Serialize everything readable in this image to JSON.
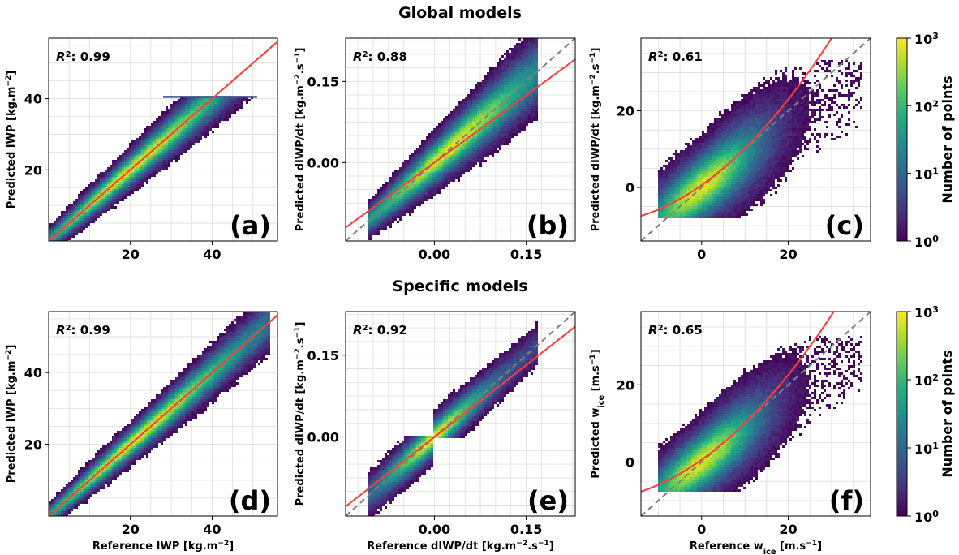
{
  "titles": {
    "global": "Global models",
    "specific": "Specific models"
  },
  "colorbar": {
    "label": "Number of points",
    "ticks": [
      {
        "base": "10",
        "exp": "0"
      },
      {
        "base": "10",
        "exp": "1"
      },
      {
        "base": "10",
        "exp": "2"
      },
      {
        "base": "10",
        "exp": "3"
      }
    ],
    "colors": [
      "#440154",
      "#472d7b",
      "#3b528b",
      "#2c728e",
      "#21918c",
      "#28ae80",
      "#5ec962",
      "#addc30",
      "#fde725"
    ]
  },
  "colors": {
    "fit_line": "#ff3b3b",
    "identity_line": "#7f7f7f",
    "center_line": "#1a1a1a",
    "grid": "#dddddd"
  },
  "chart_data": [
    {
      "type": "heatmap",
      "panel_label": "(a)",
      "r2_label": "R",
      "r2_value": ": 0.99",
      "xlabel": "",
      "ylabel_parts": [
        "Predicted IWP [kg.m",
        "−2",
        "]"
      ],
      "xlim": [
        0,
        56
      ],
      "ylim": [
        0,
        57
      ],
      "xticks": [
        20,
        40
      ],
      "xtick_labels": [
        "20",
        "40"
      ],
      "yticks": [
        20,
        40
      ],
      "ytick_labels": [
        "20",
        "40"
      ],
      "shape": "linear",
      "width": 3.2,
      "extent": [
        0,
        52
      ],
      "spread": 3.5,
      "saturation": 40.5,
      "fit": [
        0,
        0,
        1.0
      ]
    },
    {
      "type": "heatmap",
      "panel_label": "(b)",
      "r2_label": "R",
      "r2_value": ": 0.88",
      "xlabel": "",
      "ylabel_parts": [
        "Predicted dIWP/dt [kg.m",
        "−2",
        ".s",
        "−1",
        "]"
      ],
      "xlim": [
        -0.145,
        0.23
      ],
      "ylim": [
        -0.145,
        0.23
      ],
      "xticks": [
        0.0,
        0.15
      ],
      "xtick_labels": [
        "0.00",
        "0.15"
      ],
      "yticks": [
        0.0,
        0.15
      ],
      "ytick_labels": [
        "0.00",
        "0.15"
      ],
      "shape": "linear",
      "width": 0.028,
      "extent": [
        -0.11,
        0.17
      ],
      "spread": 0.06,
      "fit": [
        0,
        0,
        0.83
      ]
    },
    {
      "type": "heatmap",
      "panel_label": "(c)",
      "r2_label": "R",
      "r2_value": ": 0.61",
      "xlabel": "",
      "ylabel_parts": [
        "Predicted dIWP/dt [kg.m",
        "−2",
        ".s",
        "−1",
        "]"
      ],
      "xlim": [
        -14,
        39
      ],
      "ylim": [
        -14,
        39
      ],
      "xticks": [
        0,
        20
      ],
      "xtick_labels": [
        "0",
        "20"
      ],
      "yticks": [
        0,
        20
      ],
      "ytick_labels": [
        "0",
        "20"
      ],
      "shape": "blob",
      "width": 7.5,
      "extent": [
        -10,
        37
      ],
      "spread": 9,
      "fit": [
        0.016,
        0.6,
        0.8
      ]
    },
    {
      "type": "heatmap",
      "panel_label": "(d)",
      "r2_label": "R",
      "r2_value": ": 0.99",
      "xlabel_parts": [
        "Reference IWP [kg.m",
        "−2",
        "]"
      ],
      "ylabel_parts": [
        "Predicted IWP [kg.m",
        "−2",
        "]"
      ],
      "xlim": [
        0,
        56
      ],
      "ylim": [
        0,
        57
      ],
      "xticks": [
        20,
        40
      ],
      "xtick_labels": [
        "20",
        "40"
      ],
      "yticks": [
        20,
        40
      ],
      "ytick_labels": [
        "20",
        "40"
      ],
      "shape": "linear",
      "width": 3.0,
      "extent": [
        0,
        54
      ],
      "spread": 3.5,
      "fit": [
        0,
        0,
        1.0
      ]
    },
    {
      "type": "heatmap",
      "panel_label": "(e)",
      "r2_label": "R",
      "r2_value": ": 0.92",
      "xlabel_parts": [
        "Reference dIWP/dt [kg.m",
        "−2",
        ".s",
        "−1",
        "]"
      ],
      "ylabel_parts": [
        "Predicted dIWP/dt [kg.m",
        "−2",
        ".s",
        "−1",
        "]"
      ],
      "xlim": [
        -0.145,
        0.23
      ],
      "ylim": [
        -0.145,
        0.23
      ],
      "xticks": [
        0.0,
        0.15
      ],
      "xtick_labels": [
        "0.00",
        "0.15"
      ],
      "yticks": [
        0.0,
        0.15
      ],
      "ytick_labels": [
        "0.00",
        "0.15"
      ],
      "shape": "split",
      "width": 0.022,
      "extent": [
        -0.11,
        0.17
      ],
      "spread": 0.05,
      "fit": [
        0,
        0,
        0.88
      ]
    },
    {
      "type": "heatmap",
      "panel_label": "(f)",
      "r2_label": "R",
      "r2_value": ": 0.65",
      "xlabel_parts": [
        "Reference w",
        "ice",
        " [m.s",
        "−1",
        "]"
      ],
      "ylabel_parts": [
        "Predicted w",
        "ice",
        " [m.s",
        "−1",
        "]"
      ],
      "xlim": [
        -14,
        39
      ],
      "ylim": [
        -14,
        39
      ],
      "xticks": [
        0,
        20
      ],
      "xtick_labels": [
        "0",
        "20"
      ],
      "yticks": [
        0,
        20
      ],
      "ytick_labels": [
        "0",
        "20"
      ],
      "shape": "blob",
      "width": 7.0,
      "extent": [
        -10,
        37
      ],
      "spread": 8,
      "fit": [
        0.015,
        0.6,
        0.8
      ]
    }
  ]
}
